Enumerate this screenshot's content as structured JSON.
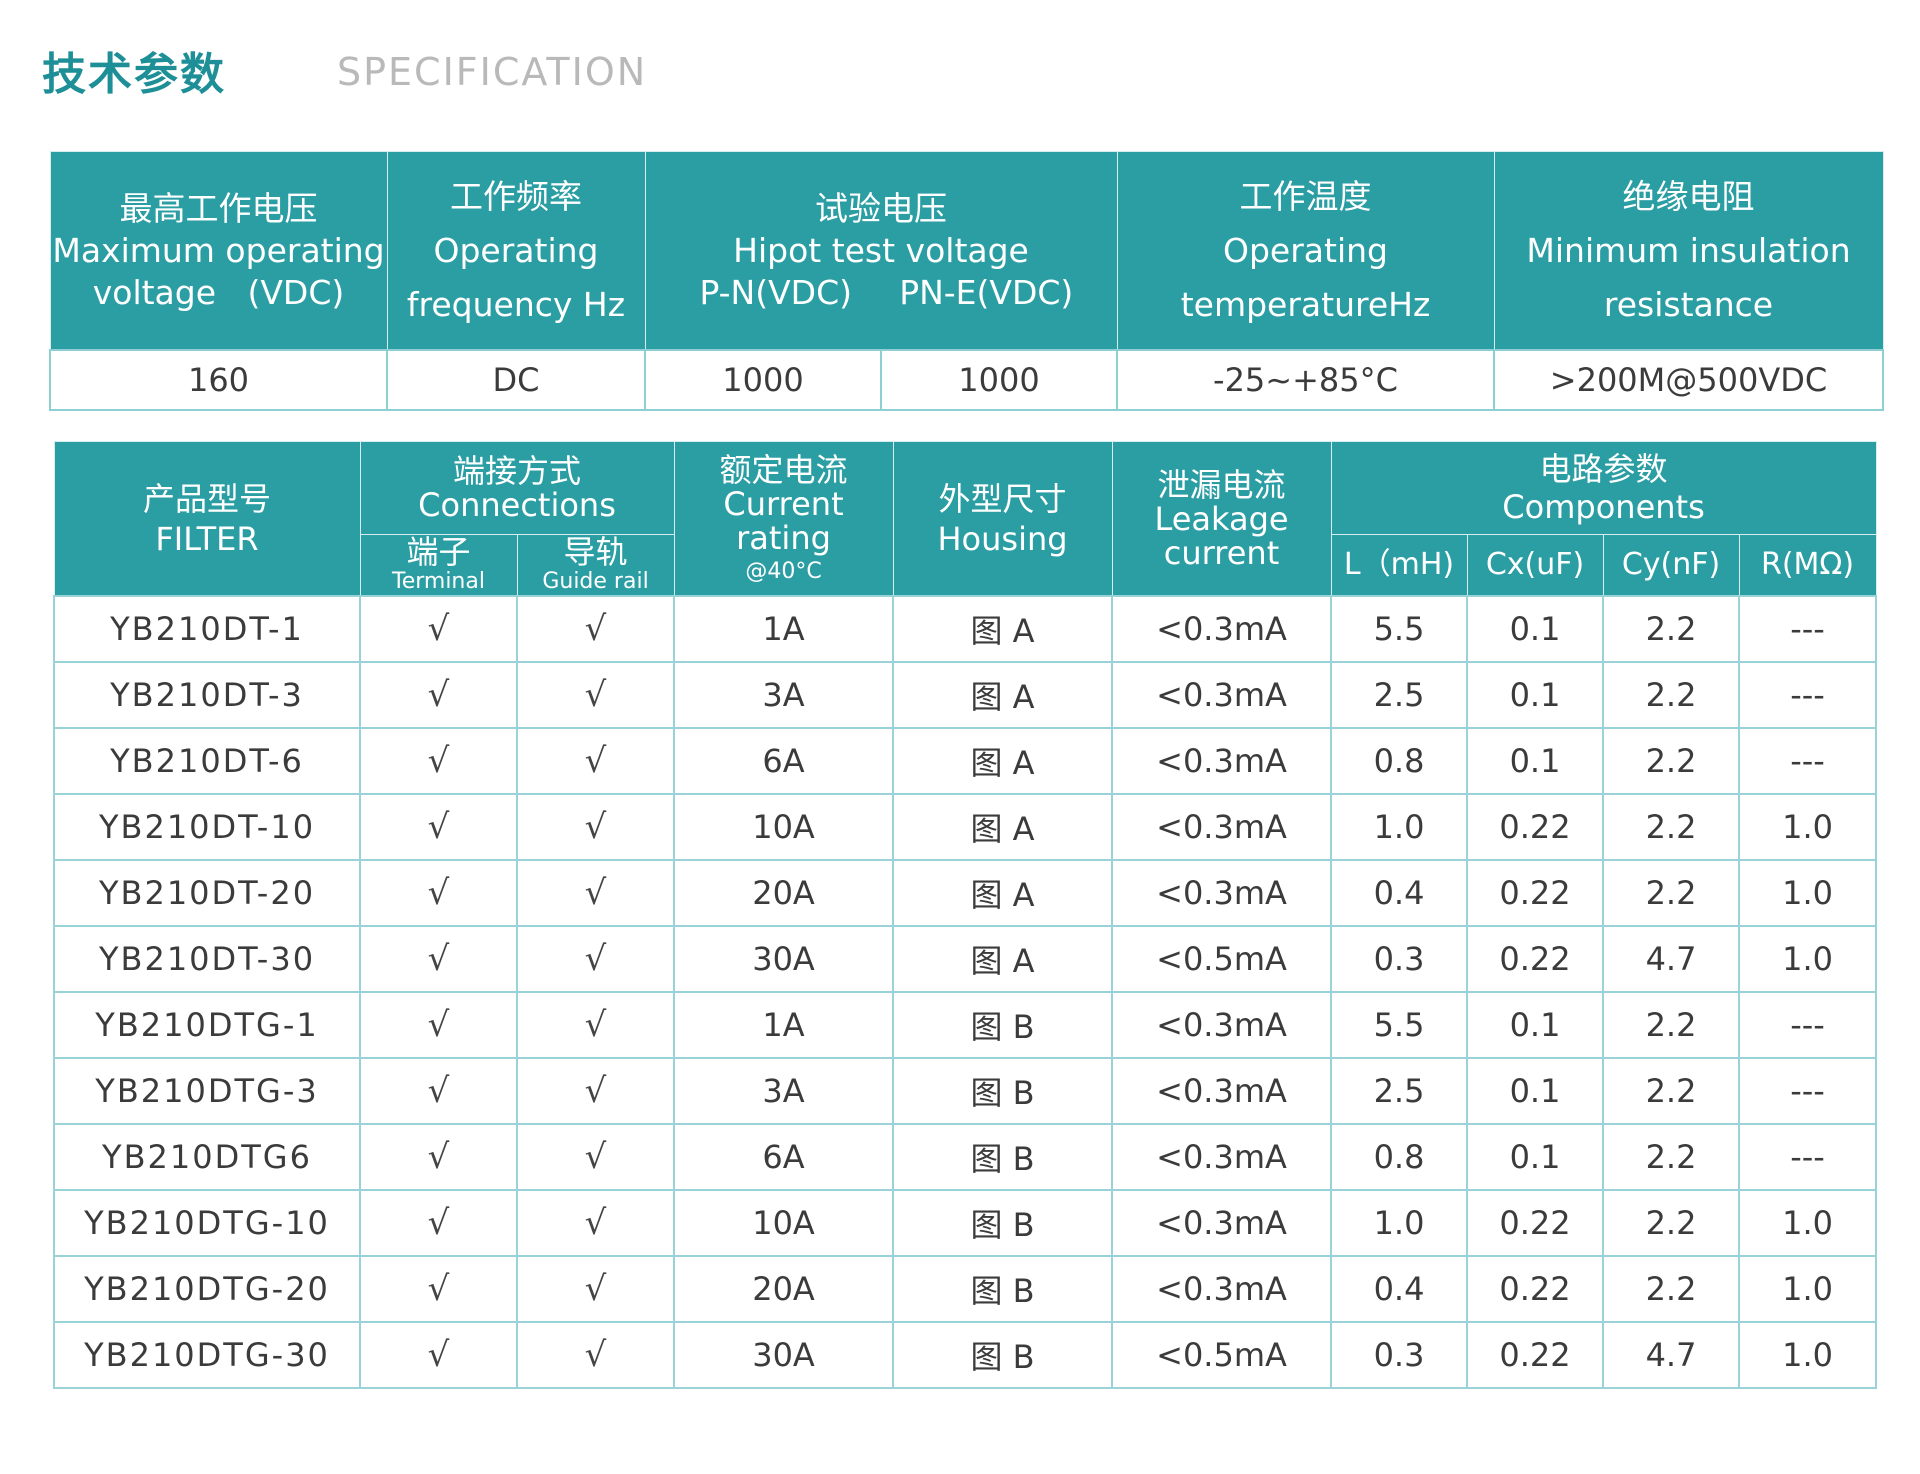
{
  "heading": {
    "cn": "技术参数",
    "en": "SPECIFICATION"
  },
  "spec_table": {
    "headers": [
      {
        "cn": "最高工作电压",
        "en1": "Maximum operating",
        "en2": "voltage   (VDC)"
      },
      {
        "cn": "工作频率",
        "en1": "Operating",
        "en2": "frequency Hz"
      },
      {
        "cn": "试验电压",
        "en1": "Hipot test voltage",
        "pn": "P-N(VDC)",
        "pe": "PN-E(VDC)"
      },
      {
        "cn": "工作温度",
        "en1": "Operating",
        "en2": "temperatureHz"
      },
      {
        "cn": "绝缘电阻",
        "en1": "Minimum insulation",
        "en2": "resistance"
      }
    ],
    "values": [
      "160",
      "DC",
      "1000",
      "1000",
      "-25~+85°C",
      ">200M@500VDC"
    ]
  },
  "product_table": {
    "headers": {
      "model": {
        "cn": "产品型号",
        "en": "FILTER"
      },
      "connections": {
        "cn": "端接方式",
        "en": "Connections"
      },
      "terminal": {
        "cn": "端子",
        "en": "Terminal"
      },
      "guide_rail": {
        "cn": "导轨",
        "en": "Guide rail"
      },
      "current": {
        "cn": "额定电流",
        "en1": "Current",
        "en2": "rating",
        "en3": "@40°C"
      },
      "housing": {
        "cn": "外型尺寸",
        "en": "Housing"
      },
      "leakage": {
        "cn": "泄漏电流",
        "en1": "Leakage",
        "en2": "current"
      },
      "components": {
        "cn": "电路参数",
        "en": "Components"
      },
      "l": "L（mH)",
      "cx": "Cx(uF)",
      "cy": "Cy(nF)",
      "r": "R(MΩ)"
    },
    "check_mark": "√",
    "rows": [
      {
        "model": "YB210DT-1",
        "current": "1A",
        "housing": "图 A",
        "leakage": "<0.3mA",
        "l": "5.5",
        "cx": "0.1",
        "cy": "2.2",
        "r": "---"
      },
      {
        "model": "YB210DT-3",
        "current": "3A",
        "housing": "图 A",
        "leakage": "<0.3mA",
        "l": "2.5",
        "cx": "0.1",
        "cy": "2.2",
        "r": "---"
      },
      {
        "model": "YB210DT-6",
        "current": "6A",
        "housing": "图 A",
        "leakage": "<0.3mA",
        "l": "0.8",
        "cx": "0.1",
        "cy": "2.2",
        "r": "---"
      },
      {
        "model": "YB210DT-10",
        "current": "10A",
        "housing": "图 A",
        "leakage": "<0.3mA",
        "l": "1.0",
        "cx": "0.22",
        "cy": "2.2",
        "r": "1.0"
      },
      {
        "model": "YB210DT-20",
        "current": "20A",
        "housing": "图 A",
        "leakage": "<0.3mA",
        "l": "0.4",
        "cx": "0.22",
        "cy": "2.2",
        "r": "1.0"
      },
      {
        "model": "YB210DT-30",
        "current": "30A",
        "housing": "图 A",
        "leakage": "<0.5mA",
        "l": "0.3",
        "cx": "0.22",
        "cy": "4.7",
        "r": "1.0"
      },
      {
        "model": "YB210DTG-1",
        "current": "1A",
        "housing": "图 B",
        "leakage": "<0.3mA",
        "l": "5.5",
        "cx": "0.1",
        "cy": "2.2",
        "r": "---"
      },
      {
        "model": "YB210DTG-3",
        "current": "3A",
        "housing": "图 B",
        "leakage": "<0.3mA",
        "l": "2.5",
        "cx": "0.1",
        "cy": "2.2",
        "r": "---"
      },
      {
        "model": "YB210DTG6",
        "current": "6A",
        "housing": "图 B",
        "leakage": "<0.3mA",
        "l": "0.8",
        "cx": "0.1",
        "cy": "2.2",
        "r": "---"
      },
      {
        "model": "YB210DTG-10",
        "current": "10A",
        "housing": "图 B",
        "leakage": "<0.3mA",
        "l": "1.0",
        "cx": "0.22",
        "cy": "2.2",
        "r": "1.0"
      },
      {
        "model": "YB210DTG-20",
        "current": "20A",
        "housing": "图 B",
        "leakage": "<0.3mA",
        "l": "0.4",
        "cx": "0.22",
        "cy": "2.2",
        "r": "1.0"
      },
      {
        "model": "YB210DTG-30",
        "current": "30A",
        "housing": "图 B",
        "leakage": "<0.5mA",
        "l": "0.3",
        "cx": "0.22",
        "cy": "4.7",
        "r": "1.0"
      }
    ]
  }
}
